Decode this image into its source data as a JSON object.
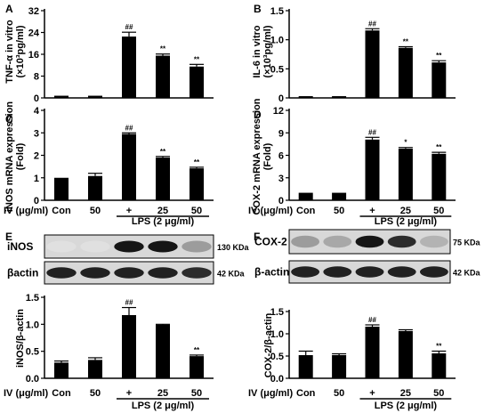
{
  "common": {
    "x_caption": "IV (μg/ml)",
    "categories": [
      "Con",
      "50",
      "+",
      "25",
      "50"
    ],
    "lps_label": "LPS (2 μg/ml)"
  },
  "blots": [
    {
      "panel": "E",
      "rows": [
        {
          "protein": "iNOS",
          "kda": "130 KDa",
          "intensity": [
            0.05,
            0.05,
            0.95,
            0.95,
            0.35
          ]
        },
        {
          "protein": "βactin",
          "kda": "42 KDa",
          "intensity": [
            0.9,
            0.9,
            0.9,
            0.9,
            0.85
          ]
        }
      ]
    },
    {
      "panel": "F",
      "rows": [
        {
          "protein": "COX-2",
          "kda": "75 KDa",
          "intensity": [
            0.35,
            0.3,
            0.95,
            0.85,
            0.25
          ]
        },
        {
          "protein": "β-actin",
          "kda": "42 KDa",
          "intensity": [
            0.9,
            0.9,
            0.9,
            0.9,
            0.9
          ]
        }
      ]
    }
  ],
  "chart_data": [
    {
      "panel": "A",
      "type": "bar",
      "ylabel": "TNF-α in vitro (×10³pg/ml)",
      "ylim": [
        0,
        32
      ],
      "yticks": [
        0,
        8,
        16,
        24,
        32
      ],
      "categories": [
        "Con",
        "50",
        "+",
        "25",
        "50"
      ],
      "values": [
        0.8,
        0.8,
        22.5,
        15.5,
        11.5
      ],
      "errors": [
        0,
        0,
        1.6,
        0.6,
        0.8
      ],
      "annotations": [
        "",
        "",
        "##",
        "**",
        "**"
      ]
    },
    {
      "panel": "B",
      "type": "bar",
      "ylabel": "IL-6 in vitro (×10³pg/ml)",
      "ylim": [
        0,
        1.5
      ],
      "yticks": [
        "0",
        "0.5",
        "1.0",
        "1.5"
      ],
      "categories": [
        "Con",
        "50",
        "+",
        "25",
        "50"
      ],
      "values": [
        0.03,
        0.03,
        1.16,
        0.86,
        0.61
      ],
      "errors": [
        0,
        0,
        0.03,
        0.02,
        0.03
      ],
      "annotations": [
        "",
        "",
        "##",
        "**",
        "**"
      ]
    },
    {
      "panel": "C",
      "type": "bar",
      "ylabel": "iNOS mRNA expression (Fold)",
      "ylim": [
        0,
        4
      ],
      "yticks": [
        0,
        1,
        2,
        3,
        4
      ],
      "categories": [
        "Con",
        "50",
        "+",
        "25",
        "50"
      ],
      "values": [
        1.0,
        1.08,
        2.95,
        1.9,
        1.42
      ],
      "errors": [
        0,
        0.12,
        0.05,
        0.05,
        0.05
      ],
      "annotations": [
        "",
        "",
        "##",
        "**",
        "**"
      ]
    },
    {
      "panel": "D",
      "type": "bar",
      "ylabel": "COX-2 mRNA expression (Fold)",
      "ylim": [
        0,
        12
      ],
      "yticks": [
        0,
        3,
        6,
        9,
        12
      ],
      "categories": [
        "Con",
        "50",
        "+",
        "25",
        "50"
      ],
      "values": [
        1.0,
        1.0,
        8.1,
        6.9,
        6.2
      ],
      "errors": [
        0,
        0,
        0.3,
        0.15,
        0.2
      ],
      "annotations": [
        "",
        "",
        "##",
        "*",
        "**"
      ]
    },
    {
      "panel": "E",
      "type": "bar",
      "ylabel": "iNOS/β-actin",
      "ylim": [
        0,
        1.5
      ],
      "yticks": [
        "0.0",
        "0.5",
        "1.0",
        "1.5"
      ],
      "categories": [
        "Con",
        "50",
        "+",
        "25",
        "50"
      ],
      "values": [
        0.29,
        0.34,
        1.17,
        0.99,
        0.41
      ],
      "errors": [
        0.03,
        0.04,
        0.14,
        0.01,
        0.02
      ],
      "annotations": [
        "",
        "",
        "##",
        "",
        "**"
      ]
    },
    {
      "panel": "F",
      "type": "bar",
      "ylabel": "COX-2/β-actin",
      "ylim": [
        0,
        1.5
      ],
      "yticks": [
        "0.0",
        "0.5",
        "1.0",
        "1.5"
      ],
      "categories": [
        "Con",
        "50",
        "+",
        "25",
        "50"
      ],
      "values": [
        0.52,
        0.52,
        1.16,
        1.06,
        0.56
      ],
      "errors": [
        0.09,
        0.03,
        0.04,
        0.03,
        0.05
      ],
      "annotations": [
        "",
        "",
        "##",
        "",
        "**"
      ]
    }
  ]
}
